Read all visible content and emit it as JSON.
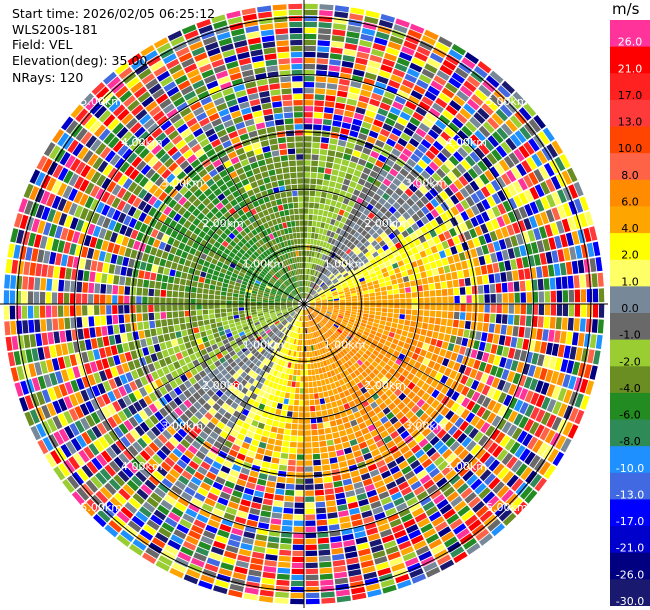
{
  "header": {
    "start_time": "Start time: 2026/02/05 06:25:12",
    "instrument": "WLS200s-181",
    "field": "Field: VEL",
    "elevation": "Elevation(deg): 35.00",
    "nrays": "NRays: 120"
  },
  "colorbar": {
    "unit": "m/s",
    "levels": [
      {
        "label": "26.0",
        "color": "#ff3399"
      },
      {
        "label": "21.0",
        "color": "#ff0000"
      },
      {
        "label": "17.0",
        "color": "#ff2020"
      },
      {
        "label": "13.0",
        "color": "#ff3a3a"
      },
      {
        "label": "10.0",
        "color": "#ff4500"
      },
      {
        "label": "8.0",
        "color": "#ff6347"
      },
      {
        "label": "6.0",
        "color": "#ff8c00"
      },
      {
        "label": "4.0",
        "color": "#ffa500"
      },
      {
        "label": "2.0",
        "color": "#ffff00"
      },
      {
        "label": "1.0",
        "color": "#ffff66"
      },
      {
        "label": "0.0",
        "color": "#778899"
      },
      {
        "label": "-1.0",
        "color": "#696969"
      },
      {
        "label": "-2.0",
        "color": "#9acd32"
      },
      {
        "label": "-4.0",
        "color": "#6b8e23"
      },
      {
        "label": "-6.0",
        "color": "#228b22"
      },
      {
        "label": "-8.0",
        "color": "#2e8b57"
      },
      {
        "label": "-10.0",
        "color": "#1e90ff"
      },
      {
        "label": "-13.0",
        "color": "#4169e1"
      },
      {
        "label": "-17.0",
        "color": "#0000ff"
      },
      {
        "label": "-21.0",
        "color": "#0000cd"
      },
      {
        "label": "-26.0",
        "color": "#000080"
      },
      {
        "label": "-30.0",
        "color": "#191970"
      }
    ]
  },
  "chart_data": {
    "type": "heatmap",
    "projection": "polar (PPI)",
    "field": "VEL",
    "units": "m/s",
    "elevation_deg": 35.0,
    "n_rays": 120,
    "range_rings": [
      {
        "label": "1.00km"
      },
      {
        "label": "2.00km"
      },
      {
        "label": "3.00km"
      },
      {
        "label": "4.00km"
      },
      {
        "label": "5.00km"
      }
    ],
    "max_range_km": 5.3,
    "pattern": "negative (green) velocities toward north-west, positive (yellow/orange) toward south-east near the center; noisy random colors beyond ~3 km"
  }
}
